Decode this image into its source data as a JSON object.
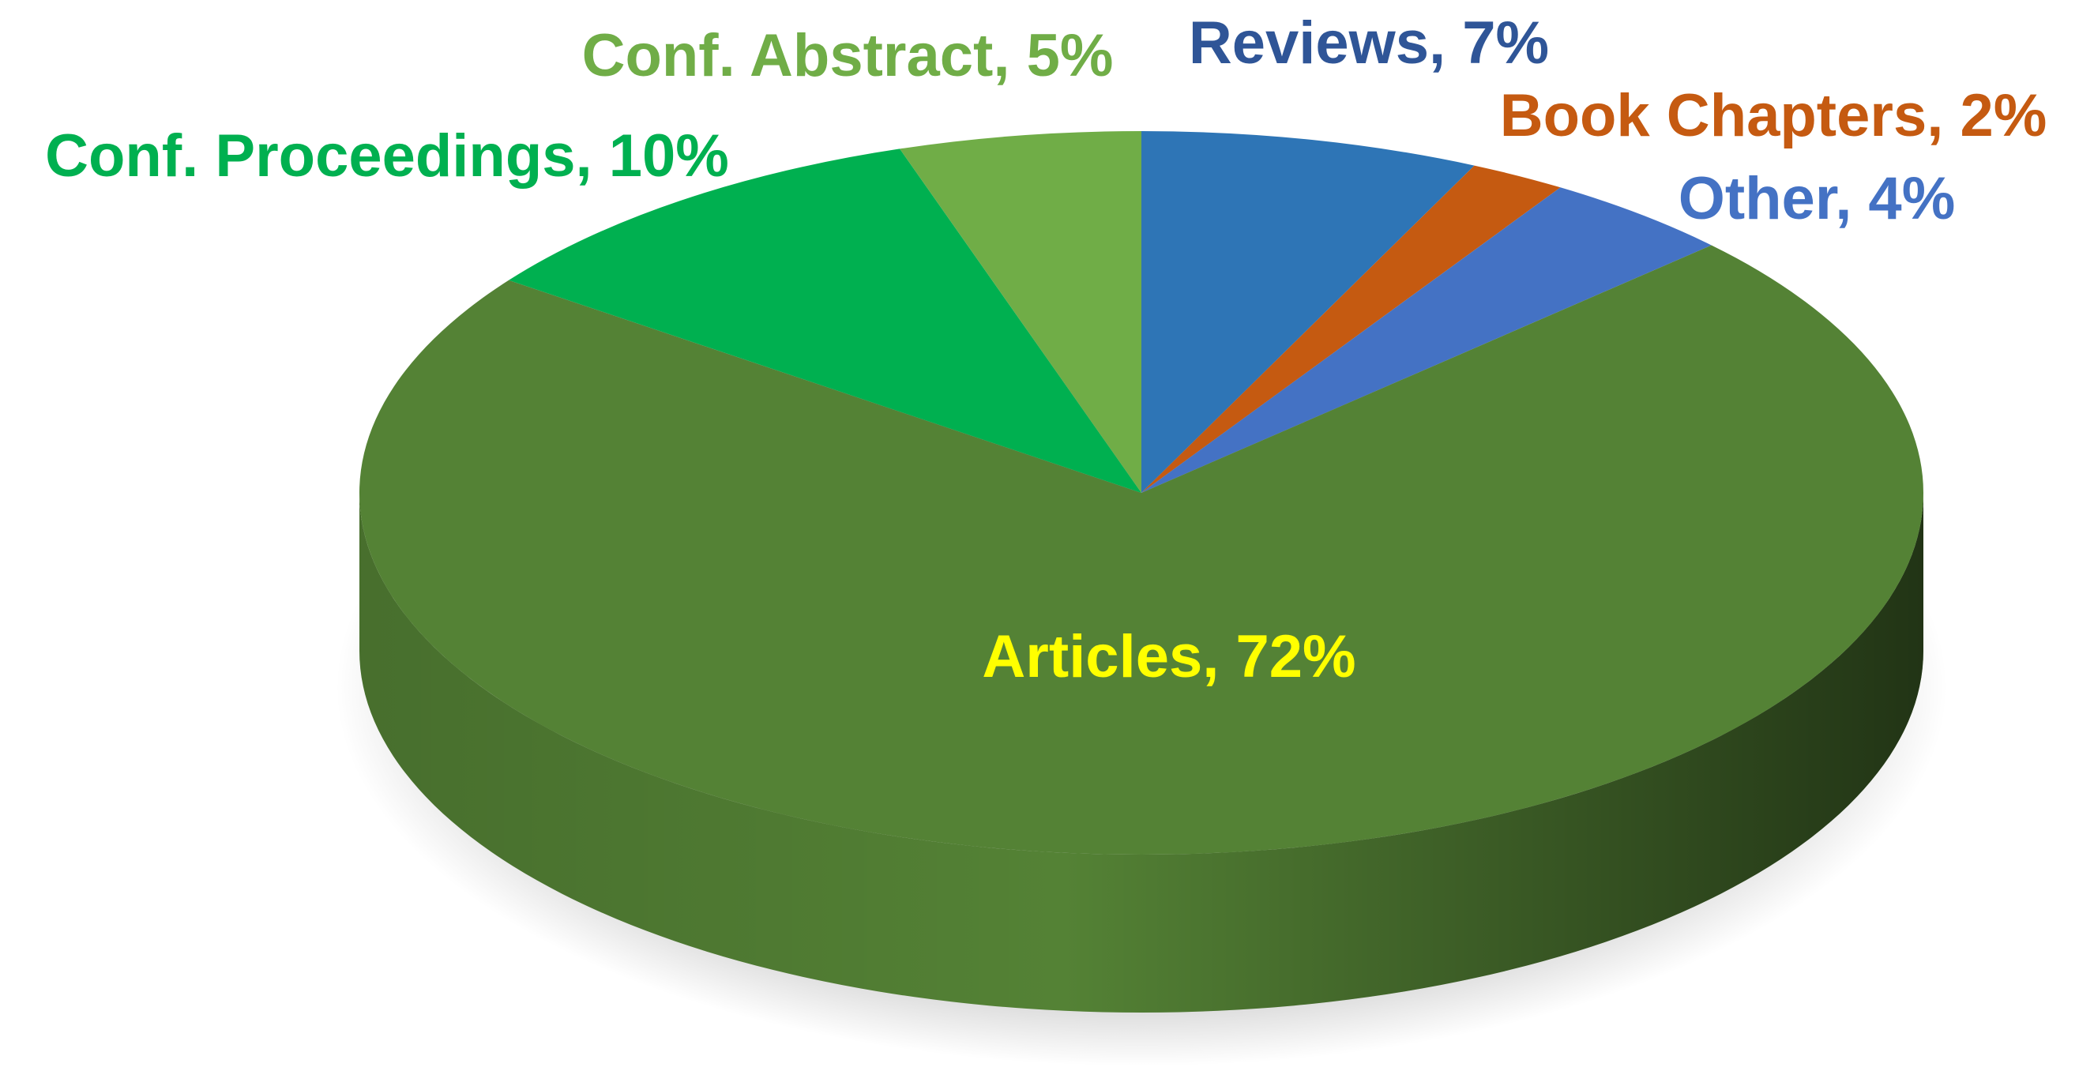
{
  "chart_data": {
    "type": "pie3d",
    "values": [
      7,
      2,
      4,
      72,
      10,
      5
    ],
    "value_labels": [
      "Reviews, 7%",
      "Book Chapters, 2%",
      "Other, 4%",
      "Articles, 72%",
      "Conf. Proceedings, 10%",
      "Conf. Abstract, 5%"
    ],
    "colors": [
      "#2e75b6",
      "#c55a11",
      "#4472c4",
      "#548235",
      "#00b050",
      "#70ad47"
    ],
    "label_colors": [
      "#2f5597",
      "#c55a11",
      "#4472c4",
      "#ffff00",
      "#00b050",
      "#70ad47"
    ]
  }
}
